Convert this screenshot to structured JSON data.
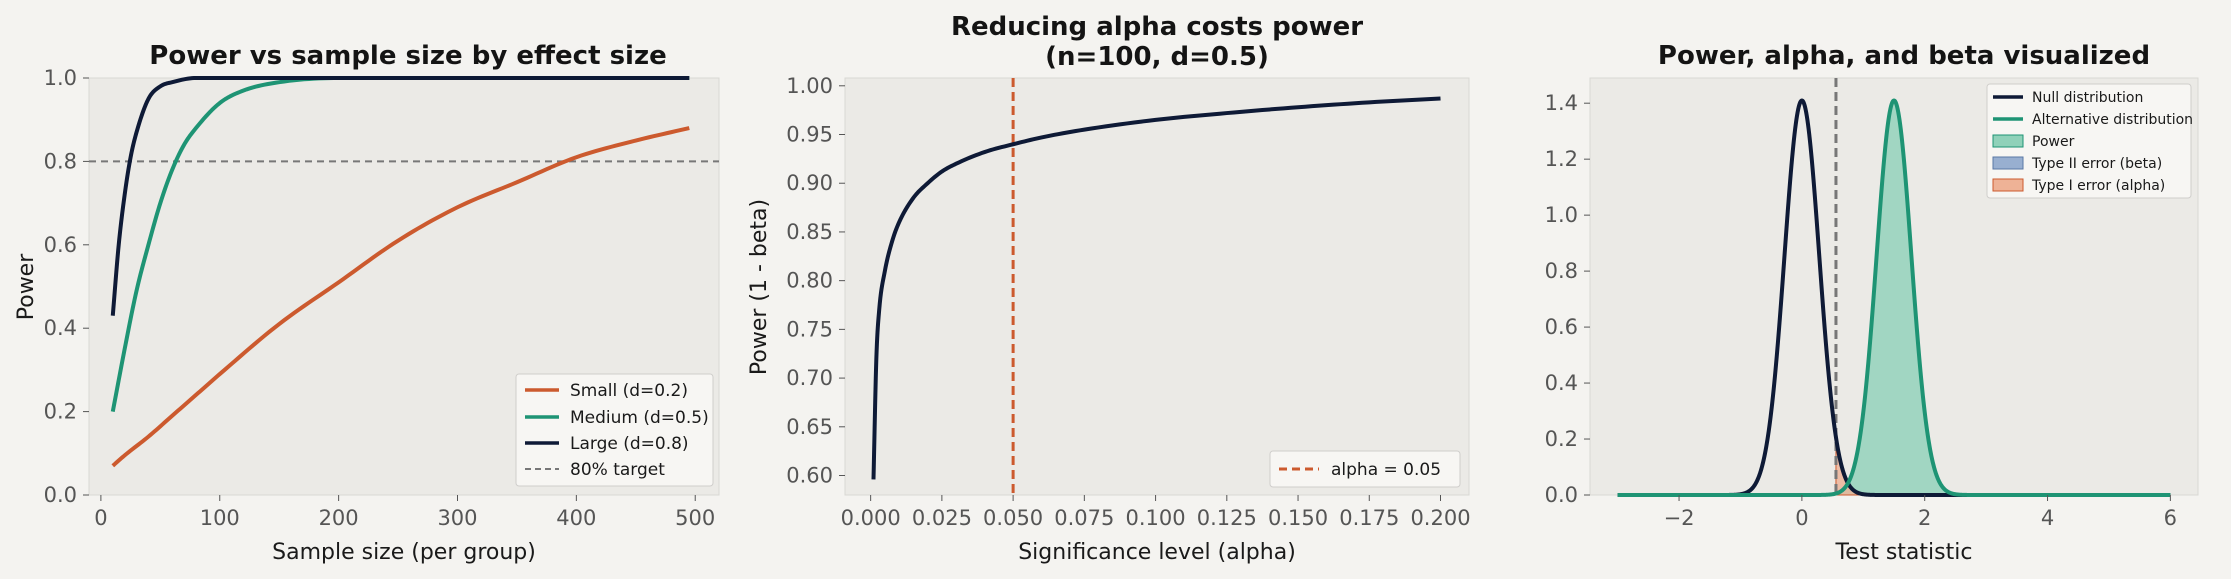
{
  "chart_data": [
    {
      "type": "line",
      "title": "Power vs sample size by effect size",
      "xlabel": "Sample size (per group)",
      "ylabel": "Power",
      "xlim": [
        -10,
        520
      ],
      "ylim": [
        0,
        1.0
      ],
      "xticks": [
        0,
        100,
        200,
        300,
        400,
        500
      ],
      "yticks": [
        0.0,
        0.2,
        0.4,
        0.6,
        0.8,
        1.0
      ],
      "grid": false,
      "legend_position": "lower-right",
      "series": [
        {
          "name": "Small (d=0.2)",
          "color": "#cc5a2e",
          "x": [
            10,
            20,
            40,
            60,
            80,
            100,
            150,
            200,
            250,
            300,
            350,
            400,
            450,
            495
          ],
          "y": [
            0.07,
            0.095,
            0.14,
            0.19,
            0.24,
            0.29,
            0.41,
            0.51,
            0.61,
            0.69,
            0.75,
            0.81,
            0.85,
            0.88
          ]
        },
        {
          "name": "Medium (d=0.5)",
          "color": "#1e9474",
          "x": [
            10,
            20,
            30,
            40,
            50,
            60,
            70,
            80,
            100,
            120,
            150,
            200,
            250,
            300,
            400,
            495
          ],
          "y": [
            0.2,
            0.35,
            0.49,
            0.6,
            0.7,
            0.78,
            0.84,
            0.88,
            0.94,
            0.97,
            0.99,
            1.0,
            1.0,
            1.0,
            1.0,
            1.0
          ]
        },
        {
          "name": "Large (d=0.8)",
          "color": "#0e1a36",
          "x": [
            10,
            15,
            20,
            25,
            30,
            40,
            50,
            60,
            80,
            100,
            150,
            200,
            300,
            400,
            495
          ],
          "y": [
            0.43,
            0.6,
            0.72,
            0.81,
            0.87,
            0.95,
            0.98,
            0.99,
            1.0,
            1.0,
            1.0,
            1.0,
            1.0,
            1.0,
            1.0
          ]
        }
      ],
      "reference_line": {
        "name": "80% target",
        "y": 0.8,
        "color": "#777777",
        "style": "dashed"
      }
    },
    {
      "type": "line",
      "title": "Reducing alpha costs power\n(n=100, d=0.5)",
      "title_lines": [
        "Reducing alpha costs power",
        "(n=100, d=0.5)"
      ],
      "xlabel": "Significance level (alpha)",
      "ylabel": "Power (1 - beta)",
      "xlim": [
        -0.009,
        0.21
      ],
      "ylim": [
        0.58,
        1.008
      ],
      "xticks": [
        "0.000",
        "0.025",
        "0.050",
        "0.075",
        "0.100",
        "0.125",
        "0.150",
        "0.175",
        "0.200"
      ],
      "yticks": [
        "0.60",
        "0.65",
        "0.70",
        "0.75",
        "0.80",
        "0.85",
        "0.90",
        "0.95",
        "1.00"
      ],
      "grid": false,
      "legend_position": "lower-right",
      "series": [
        {
          "name": "",
          "color": "#0e1a36",
          "x": [
            0.001,
            0.002,
            0.003,
            0.005,
            0.0075,
            0.01,
            0.015,
            0.02,
            0.025,
            0.03,
            0.04,
            0.05,
            0.06,
            0.075,
            0.1,
            0.125,
            0.15,
            0.175,
            0.2
          ],
          "y": [
            0.596,
            0.72,
            0.77,
            0.81,
            0.84,
            0.86,
            0.885,
            0.9,
            0.912,
            0.92,
            0.932,
            0.94,
            0.947,
            0.955,
            0.965,
            0.972,
            0.978,
            0.983,
            0.987
          ]
        }
      ],
      "reference_line": {
        "name": "alpha = 0.05",
        "x": 0.05,
        "color": "#cc5a2e",
        "style": "dashed"
      }
    },
    {
      "type": "area",
      "title": "Power, alpha, and beta visualized",
      "xlabel": "Test statistic",
      "ylabel": "",
      "xlim": [
        -3.45,
        6.45
      ],
      "ylim": [
        0,
        1.49
      ],
      "xticks": [
        "−2",
        "0",
        "2",
        "4",
        "6"
      ],
      "xtick_values": [
        -2,
        0,
        2,
        4,
        6
      ],
      "yticks": [
        "0.0",
        "0.2",
        "0.4",
        "0.6",
        "0.8",
        "1.0",
        "1.2",
        "1.4"
      ],
      "grid": false,
      "legend_position": "top-right",
      "series": [
        {
          "name": "Null distribution",
          "color": "#0e1a36",
          "distribution": "normal",
          "mean": 0.0,
          "sd": 0.283
        },
        {
          "name": "Alternative distribution",
          "color": "#1e9474",
          "distribution": "normal",
          "mean": 1.5,
          "sd": 0.283
        }
      ],
      "shaded_regions": [
        {
          "name": "Power",
          "color": "#8fd1b9",
          "from": 0.555,
          "to": 6.0,
          "under": "Alternative distribution"
        },
        {
          "name": "Type II error (beta)",
          "color": "#98afd0",
          "from": -3.0,
          "to": 0.555,
          "under": "Alternative distribution"
        },
        {
          "name": "Type I error (alpha)",
          "color": "#eeb296",
          "from": 0.555,
          "to": 6.0,
          "under": "Null distribution"
        }
      ],
      "reference_line": {
        "x": 0.555,
        "color": "#777777",
        "style": "dashed"
      }
    }
  ]
}
